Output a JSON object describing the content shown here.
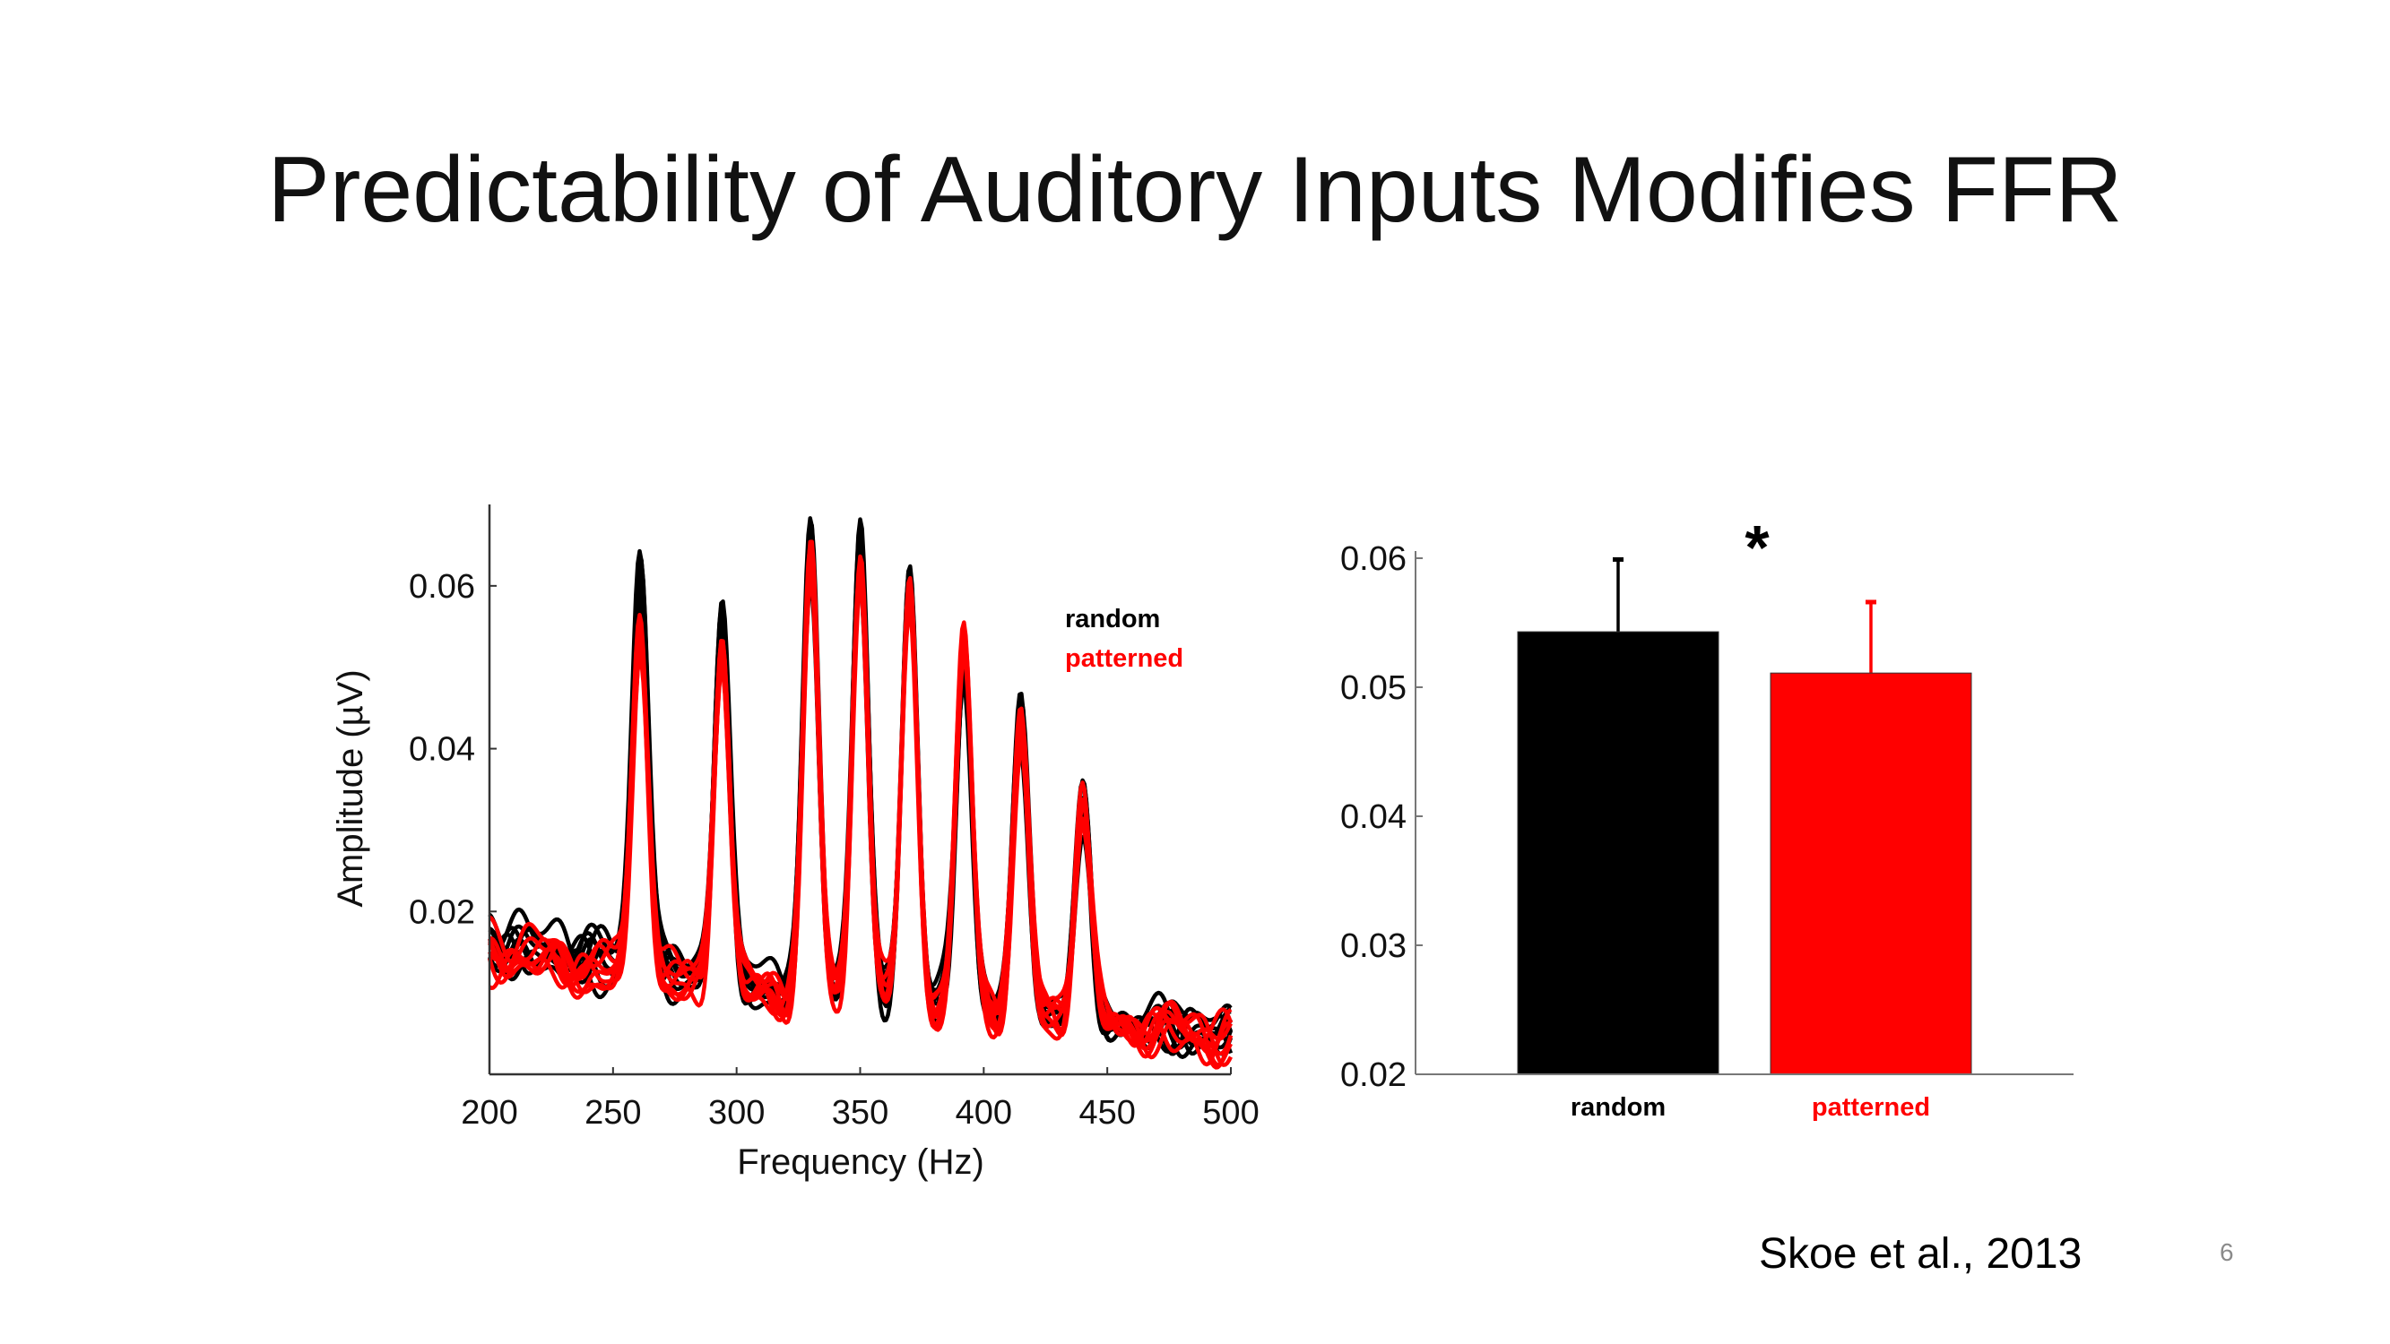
{
  "slide": {
    "title": "Predictability of Auditory Inputs Modifies FFR",
    "citation": "Skoe et al., 2013",
    "page_number": "6"
  },
  "colors": {
    "random": "#000000",
    "patterned": "#ff0000"
  },
  "chart_data": [
    {
      "type": "line",
      "xlabel": "Frequency (Hz)",
      "ylabel": "Amplitude (µV)",
      "xlim": [
        200,
        500
      ],
      "ylim": [
        0,
        0.07
      ],
      "xticks": [
        "200",
        "250",
        "300",
        "350",
        "400",
        "450",
        "500"
      ],
      "yticks": [
        "0.02",
        "0.04",
        "0.06"
      ],
      "legend": {
        "position": "top-right",
        "entries": [
          "random",
          "patterned"
        ]
      },
      "peak_frequencies": [
        261,
        294,
        330,
        350,
        370,
        392,
        415,
        440
      ],
      "series": [
        {
          "name": "random",
          "peak_amplitudes": [
            0.062,
            0.055,
            0.064,
            0.065,
            0.061,
            0.051,
            0.043,
            0.033
          ],
          "noise_floor": {
            "x": [
              200,
              300,
              400,
              500
            ],
            "y": [
              0.016,
              0.011,
              0.008,
              0.005
            ]
          },
          "traces": 8
        },
        {
          "name": "patterned",
          "peak_amplitudes": [
            0.055,
            0.053,
            0.063,
            0.063,
            0.059,
            0.053,
            0.042,
            0.033
          ],
          "noise_floor": {
            "x": [
              200,
              300,
              400,
              500
            ],
            "y": [
              0.015,
              0.01,
              0.008,
              0.0045
            ]
          },
          "traces": 8
        }
      ]
    },
    {
      "type": "bar",
      "categories": [
        "random",
        "patterned"
      ],
      "values": [
        0.0543,
        0.0511
      ],
      "error_upper": [
        0.0599,
        0.0566
      ],
      "ylim": [
        0.02,
        0.06
      ],
      "yticks": [
        "0.02",
        "0.03",
        "0.04",
        "0.05",
        "0.06"
      ],
      "annotation": "*"
    }
  ]
}
